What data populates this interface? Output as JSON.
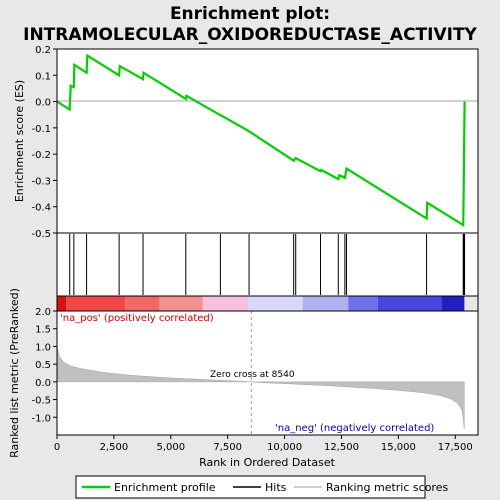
{
  "chart_data": {
    "type": "line",
    "title_line1": "Enrichment plot:",
    "title_line2": "INTRAMOLECULAR_OXIDOREDUCTASE_ACTIVITY",
    "top_panel": {
      "ylabel": "Enrichment score (ES)",
      "ylim": [
        -0.5,
        0.2
      ],
      "yticks": [
        "0.2",
        "0.1",
        "0.0",
        "-0.1",
        "-0.2",
        "-0.3",
        "-0.4",
        "-0.5"
      ],
      "ytick_values": [
        0.2,
        0.1,
        0.0,
        -0.1,
        -0.2,
        -0.3,
        -0.4,
        -0.5
      ],
      "series_name": "Enrichment profile",
      "es_points": [
        [
          0,
          0.0
        ],
        [
          560,
          -0.03
        ],
        [
          600,
          0.06
        ],
        [
          740,
          0.055
        ],
        [
          760,
          0.14
        ],
        [
          1300,
          0.11
        ],
        [
          1330,
          0.175
        ],
        [
          2730,
          0.1
        ],
        [
          2760,
          0.135
        ],
        [
          3780,
          0.085
        ],
        [
          3800,
          0.11
        ],
        [
          5660,
          0.01
        ],
        [
          5690,
          0.022
        ],
        [
          7180,
          -0.052
        ],
        [
          7200,
          -0.052
        ],
        [
          8440,
          -0.113
        ],
        [
          10400,
          -0.225
        ],
        [
          10440,
          -0.22
        ],
        [
          10490,
          -0.215
        ],
        [
          11580,
          -0.265
        ],
        [
          11610,
          -0.26
        ],
        [
          12360,
          -0.295
        ],
        [
          12400,
          -0.28
        ],
        [
          12650,
          -0.29
        ],
        [
          12690,
          -0.27
        ],
        [
          12720,
          -0.255
        ],
        [
          16240,
          -0.445
        ],
        [
          16270,
          -0.385
        ],
        [
          17850,
          -0.47
        ],
        [
          17870,
          -0.33
        ],
        [
          17890,
          -0.175
        ],
        [
          17910,
          0.0
        ]
      ]
    },
    "hits": [
      560,
      740,
      1300,
      2730,
      3780,
      5660,
      7180,
      8440,
      10400,
      10490,
      11580,
      12360,
      12650,
      12720,
      16240,
      17850,
      17870,
      17890,
      17910
    ],
    "bottom_panel": {
      "ylabel": "Ranked list metric (PreRanked)",
      "ylim": [
        -1.5,
        2.0
      ],
      "yticks": [
        "2.0",
        "1.5",
        "1.0",
        "0.5",
        "0.0",
        "-0.5",
        "-1.0"
      ],
      "ytick_values": [
        2.0,
        1.5,
        1.0,
        0.5,
        0.0,
        -0.5,
        -1.0
      ],
      "metric_curve": [
        [
          0,
          1.0
        ],
        [
          100,
          0.72
        ],
        [
          300,
          0.55
        ],
        [
          600,
          0.45
        ],
        [
          1000,
          0.38
        ],
        [
          2000,
          0.27
        ],
        [
          3000,
          0.2
        ],
        [
          4000,
          0.15
        ],
        [
          5000,
          0.11
        ],
        [
          6000,
          0.08
        ],
        [
          7000,
          0.05
        ],
        [
          8000,
          0.02
        ],
        [
          8540,
          0.0
        ],
        [
          9000,
          -0.02
        ],
        [
          10000,
          -0.05
        ],
        [
          11000,
          -0.08
        ],
        [
          12000,
          -0.11
        ],
        [
          13000,
          -0.15
        ],
        [
          14000,
          -0.19
        ],
        [
          15000,
          -0.24
        ],
        [
          16000,
          -0.3
        ],
        [
          16800,
          -0.38
        ],
        [
          17300,
          -0.48
        ],
        [
          17600,
          -0.6
        ],
        [
          17800,
          -0.8
        ],
        [
          17900,
          -1.33
        ]
      ],
      "zero_cross_label": "Zero cross at 8540",
      "zero_cross": 8540,
      "pos_label": "'na_pos' (positively correlated)",
      "neg_label": "'na_neg' (negatively correlated)"
    },
    "xlabel": "Rank in Ordered Dataset",
    "xlim": [
      0,
      18500
    ],
    "xticks": [
      "0",
      "2,500",
      "5,000",
      "7,500",
      "10,000",
      "12,500",
      "15,000",
      "17,500"
    ],
    "xtick_values": [
      0,
      2500,
      5000,
      7500,
      10000,
      12500,
      15000,
      17500
    ],
    "colorbar_segments": [
      [
        0,
        400,
        "#d81010"
      ],
      [
        400,
        3000,
        "#f04848"
      ],
      [
        3000,
        4500,
        "#f06868"
      ],
      [
        4500,
        6400,
        "#f49090"
      ],
      [
        6400,
        8400,
        "#f8c0e0"
      ],
      [
        8400,
        10800,
        "#d8d8f8"
      ],
      [
        10800,
        12800,
        "#b0b0f0"
      ],
      [
        12800,
        14100,
        "#7070e8"
      ],
      [
        14100,
        16900,
        "#4848e0"
      ],
      [
        16900,
        17900,
        "#2020c0"
      ]
    ],
    "legend": [
      {
        "label": "Enrichment profile",
        "color": "#00d000"
      },
      {
        "label": "Hits",
        "color": "#000000"
      },
      {
        "label": "Ranking metric scores",
        "color": "#c0c0c0"
      }
    ],
    "colors": {
      "es_line": "#00d000",
      "metric_fill": "#c0c0c0",
      "pos_text": "#d00000",
      "neg_text": "#0000c0"
    }
  }
}
